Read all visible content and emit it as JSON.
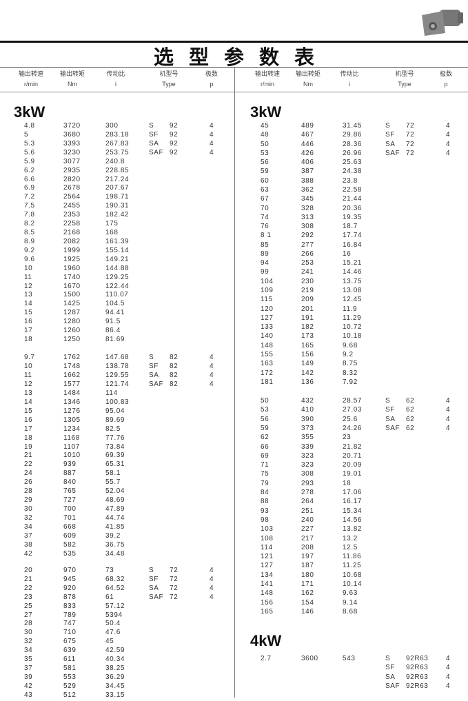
{
  "title": "选型参数表",
  "image": {
    "icon": "gear-motor-photo"
  },
  "headers": [
    {
      "cn": "输出转速",
      "en": "r/min"
    },
    {
      "cn": "输出转矩",
      "en": "Nm"
    },
    {
      "cn": "传动比",
      "en": "i"
    },
    {
      "cn": "机型号",
      "en": "Type"
    },
    {
      "cn": "极数",
      "en": "p"
    }
  ],
  "columns": {
    "left": {
      "sections": [
        {
          "power": "3kW",
          "blocks": [
            {
              "rows": [
                [
                  "4.8",
                  "3720",
                  "300"
                ],
                [
                  "5",
                  "3680",
                  "283.18"
                ],
                [
                  "5.3",
                  "3393",
                  "267.83"
                ],
                [
                  "5.6",
                  "3230",
                  "253.75"
                ],
                [
                  "5.9",
                  "3077",
                  "240.8"
                ],
                [
                  "6.2",
                  "2935",
                  "228.85"
                ],
                [
                  "6.6",
                  "2820",
                  "217.24"
                ],
                [
                  "6.9",
                  "2678",
                  "207.67"
                ],
                [
                  "7.2",
                  "2564",
                  "198.71"
                ],
                [
                  "7.5",
                  "2455",
                  "190.31"
                ],
                [
                  "7.8",
                  "2353",
                  "182.42"
                ],
                [
                  "8.2",
                  "2258",
                  "175"
                ],
                [
                  "8.5",
                  "2168",
                  "168"
                ],
                [
                  "8.9",
                  "2082",
                  "161.39"
                ],
                [
                  "9.2",
                  "1999",
                  "155.14"
                ],
                [
                  "9.6",
                  "1925",
                  "149.21"
                ],
                [
                  "10",
                  "1960",
                  "144.88"
                ],
                [
                  "11",
                  "1740",
                  "129.25"
                ],
                [
                  "12",
                  "1670",
                  "122.44"
                ],
                [
                  "13",
                  "1500",
                  "110.07"
                ],
                [
                  "14",
                  "1425",
                  "104.5"
                ],
                [
                  "15",
                  "1287",
                  "94.41"
                ],
                [
                  "16",
                  "1280",
                  "91.5"
                ],
                [
                  "17",
                  "1260",
                  "86.4"
                ],
                [
                  "18",
                  "1250",
                  "81.69"
                ]
              ],
              "types": [
                [
                  "S",
                  "92",
                  "4"
                ],
                [
                  "SF",
                  "92",
                  "4"
                ],
                [
                  "SA",
                  "92",
                  "4"
                ],
                [
                  "SAF",
                  "92",
                  "4"
                ]
              ]
            },
            {
              "rows": [
                [
                  "9.7",
                  "1762",
                  "147.68"
                ],
                [
                  "10",
                  "1748",
                  "138.78"
                ],
                [
                  "11",
                  "1662",
                  "129.55"
                ],
                [
                  "12",
                  "1577",
                  "121.74"
                ],
                [
                  "13",
                  "1484",
                  "114"
                ],
                [
                  "14",
                  "1346",
                  "100.83"
                ],
                [
                  "15",
                  "1276",
                  "95.04"
                ],
                [
                  "16",
                  "1305",
                  "89.69"
                ],
                [
                  "17",
                  "1234",
                  "82.5"
                ],
                [
                  "18",
                  "1168",
                  "77.76"
                ],
                [
                  "19",
                  "1107",
                  "73.84"
                ],
                [
                  "21",
                  "1010",
                  "69.39"
                ],
                [
                  "22",
                  "939",
                  "65.31"
                ],
                [
                  "24",
                  "887",
                  "58.1"
                ],
                [
                  "26",
                  "840",
                  "55.7"
                ],
                [
                  "28",
                  "765",
                  "52.04"
                ],
                [
                  "29",
                  "727",
                  "48.69"
                ],
                [
                  "30",
                  "700",
                  "47.89"
                ],
                [
                  "32",
                  "701",
                  "44.74"
                ],
                [
                  "34",
                  "668",
                  "41.85"
                ],
                [
                  "37",
                  "609",
                  "39.2"
                ],
                [
                  "38",
                  "582",
                  "36.75"
                ],
                [
                  "42",
                  "535",
                  "34.48"
                ]
              ],
              "types": [
                [
                  "S",
                  "82",
                  "4"
                ],
                [
                  "SF",
                  "82",
                  "4"
                ],
                [
                  "SA",
                  "82",
                  "4"
                ],
                [
                  "SAF",
                  "82",
                  "4"
                ]
              ]
            },
            {
              "rows": [
                [
                  "20",
                  "970",
                  "73"
                ],
                [
                  "21",
                  "945",
                  "68.32"
                ],
                [
                  "22",
                  "920",
                  "64.52"
                ],
                [
                  "23",
                  "878",
                  "61"
                ],
                [
                  "25",
                  "833",
                  "57.12"
                ],
                [
                  "27",
                  "789",
                  "5394"
                ],
                [
                  "28",
                  "747",
                  "50.4"
                ],
                [
                  "30",
                  "710",
                  "47.6"
                ],
                [
                  "32",
                  "675",
                  "45"
                ],
                [
                  "34",
                  "639",
                  "42.59"
                ],
                [
                  "35",
                  "611",
                  "40.34"
                ],
                [
                  "37",
                  "581",
                  "38.25"
                ],
                [
                  "39",
                  "553",
                  "36.29"
                ],
                [
                  "42",
                  "529",
                  "34.45"
                ],
                [
                  "43",
                  "512",
                  "33.15"
                ]
              ],
              "types": [
                [
                  "S",
                  "72",
                  "4"
                ],
                [
                  "SF",
                  "72",
                  "4"
                ],
                [
                  "SA",
                  "72",
                  "4"
                ],
                [
                  "SAF",
                  "72",
                  "4"
                ]
              ]
            }
          ]
        }
      ]
    },
    "right": {
      "sections": [
        {
          "power": "3kW",
          "blocks": [
            {
              "rows": [
                [
                  "45",
                  "489",
                  "31.45"
                ],
                [
                  "48",
                  "467",
                  "29.86"
                ],
                [
                  "50",
                  "446",
                  "28.36"
                ],
                [
                  "53",
                  "426",
                  "26.96"
                ],
                [
                  "56",
                  "406",
                  "25.63"
                ],
                [
                  "59",
                  "387",
                  "24.38"
                ],
                [
                  "60",
                  "388",
                  "23.8"
                ],
                [
                  "63",
                  "362",
                  "22.58"
                ],
                [
                  "67",
                  "345",
                  "21.44"
                ],
                [
                  "70",
                  "328",
                  "20.36"
                ],
                [
                  "74",
                  "313",
                  "19.35"
                ],
                [
                  "76",
                  "308",
                  "18.7"
                ],
                [
                  "8 1",
                  "292",
                  "17.74"
                ],
                [
                  "85",
                  "277",
                  "16.84"
                ],
                [
                  "89",
                  "266",
                  "16"
                ],
                [
                  "94",
                  "253",
                  "15.21"
                ],
                [
                  "99",
                  "241",
                  "14.46"
                ],
                [
                  "104",
                  "230",
                  "13.75"
                ],
                [
                  "109",
                  "219",
                  "13.08"
                ],
                [
                  "115",
                  "209",
                  "12.45"
                ],
                [
                  "120",
                  "201",
                  "11.9"
                ],
                [
                  "127",
                  "191",
                  "11.29"
                ],
                [
                  "133",
                  "182",
                  "10.72"
                ],
                [
                  "140",
                  "173",
                  "10.18"
                ],
                [
                  "148",
                  "165",
                  "9.68"
                ],
                [
                  "155",
                  "156",
                  "9.2"
                ],
                [
                  "163",
                  "149",
                  "8.75"
                ],
                [
                  "172",
                  "142",
                  "8.32"
                ],
                [
                  "181",
                  "136",
                  "7.92"
                ]
              ],
              "types": [
                [
                  "S",
                  "72",
                  "4"
                ],
                [
                  "SF",
                  "72",
                  "4"
                ],
                [
                  "SA",
                  "72",
                  "4"
                ],
                [
                  "SAF",
                  "72",
                  "4"
                ]
              ]
            },
            {
              "rows": [
                [
                  "50",
                  "432",
                  "28.57"
                ],
                [
                  "53",
                  "410",
                  "27.03"
                ],
                [
                  "56",
                  "390",
                  "25.6"
                ],
                [
                  "59",
                  "373",
                  "24.26"
                ],
                [
                  "62",
                  "355",
                  "23"
                ],
                [
                  "66",
                  "339",
                  "21.82"
                ],
                [
                  "69",
                  "323",
                  "20.71"
                ],
                [
                  "71",
                  "323",
                  "20.09"
                ],
                [
                  "75",
                  "308",
                  "19.01"
                ],
                [
                  "79",
                  "293",
                  "18"
                ],
                [
                  "84",
                  "278",
                  "17.06"
                ],
                [
                  "88",
                  "264",
                  "16.17"
                ],
                [
                  "93",
                  "251",
                  "15.34"
                ],
                [
                  "98",
                  "240",
                  "14.56"
                ],
                [
                  "103",
                  "227",
                  "13.82"
                ],
                [
                  "108",
                  "217",
                  "13.2"
                ],
                [
                  "114",
                  "208",
                  "12.5"
                ],
                [
                  "121",
                  "197",
                  "11.86"
                ],
                [
                  "127",
                  "187",
                  "11.25"
                ],
                [
                  "134",
                  "180",
                  "10.68"
                ],
                [
                  "141",
                  "171",
                  "10.14"
                ],
                [
                  "148",
                  "162",
                  "9.63"
                ],
                [
                  "156",
                  "154",
                  "9.14"
                ],
                [
                  "165",
                  "146",
                  "8.68"
                ]
              ],
              "types": [
                [
                  "S",
                  "62",
                  "4"
                ],
                [
                  "SF",
                  "62",
                  "4"
                ],
                [
                  "SA",
                  "62",
                  "4"
                ],
                [
                  "SAF",
                  "62",
                  "4"
                ]
              ]
            }
          ]
        },
        {
          "power": "4kW",
          "blocks": [
            {
              "rows": [
                [
                  "2.7",
                  "3600",
                  "543"
                ]
              ],
              "types": [
                [
                  "S",
                  "92R63",
                  "4"
                ],
                [
                  "SF",
                  "92R63",
                  "4"
                ],
                [
                  "SA",
                  "92R63",
                  "4"
                ],
                [
                  "SAF",
                  "92R63",
                  "4"
                ]
              ]
            }
          ]
        }
      ]
    }
  }
}
